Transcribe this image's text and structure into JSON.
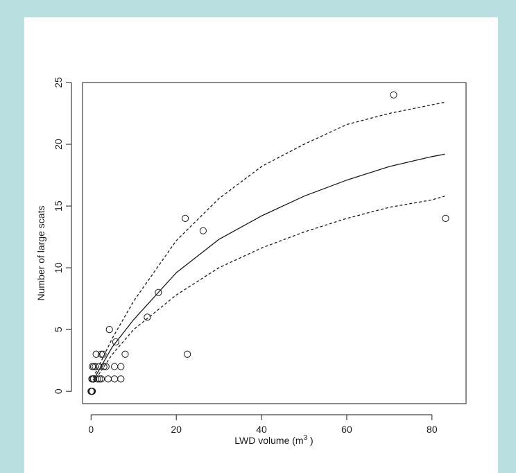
{
  "chart_data": {
    "type": "scatter",
    "title": "",
    "xlabel": "LWD volume (m",
    "xlabel_sup": "3",
    "xlabel_close": " )",
    "ylabel": "Number of large scats",
    "xlim": [
      -2,
      88
    ],
    "ylim": [
      -1,
      25
    ],
    "x_ticks": [
      0,
      20,
      40,
      60,
      80
    ],
    "y_ticks": [
      0,
      5,
      10,
      15,
      20,
      25
    ],
    "grid": false,
    "legend": "none",
    "points": [
      [
        0,
        0
      ],
      [
        0.1,
        0
      ],
      [
        0.2,
        0
      ],
      [
        0.3,
        0
      ],
      [
        0.2,
        1
      ],
      [
        0.4,
        1
      ],
      [
        0.6,
        1
      ],
      [
        1.5,
        1
      ],
      [
        2.0,
        1
      ],
      [
        2.4,
        1
      ],
      [
        4.0,
        1
      ],
      [
        5.5,
        1
      ],
      [
        7.0,
        1
      ],
      [
        0.3,
        2
      ],
      [
        0.6,
        2
      ],
      [
        1.0,
        2
      ],
      [
        1.8,
        2
      ],
      [
        3.0,
        2
      ],
      [
        3.5,
        2
      ],
      [
        5.5,
        2
      ],
      [
        7.0,
        2
      ],
      [
        1.2,
        3
      ],
      [
        2.4,
        3
      ],
      [
        2.8,
        3
      ],
      [
        8.0,
        3
      ],
      [
        5.8,
        4
      ],
      [
        4.3,
        5
      ],
      [
        13.2,
        6
      ],
      [
        15.8,
        8
      ],
      [
        22.6,
        3
      ],
      [
        22.1,
        14
      ],
      [
        26.3,
        13
      ],
      [
        71.0,
        24
      ],
      [
        83.2,
        14
      ]
    ],
    "fit": {
      "style": "solid",
      "x": [
        0.5,
        5,
        10,
        20,
        30,
        40,
        50,
        60,
        70,
        80,
        83
      ],
      "y": [
        0.9,
        3.6,
        5.8,
        9.6,
        12.3,
        14.2,
        15.8,
        17.1,
        18.2,
        19.0,
        19.2
      ]
    },
    "upper_band": {
      "style": "dashed",
      "x": [
        0.5,
        5,
        10,
        20,
        30,
        40,
        50,
        60,
        70,
        80,
        83
      ],
      "y": [
        1.1,
        4.3,
        7.3,
        12.2,
        15.6,
        18.2,
        20.0,
        21.6,
        22.5,
        23.2,
        23.4
      ]
    },
    "lower_band": {
      "style": "dashed",
      "x": [
        0.5,
        5,
        10,
        20,
        30,
        40,
        50,
        60,
        70,
        80,
        83
      ],
      "y": [
        0.7,
        3.0,
        5.0,
        7.8,
        10.0,
        11.6,
        12.9,
        14.0,
        14.9,
        15.5,
        15.8
      ]
    }
  }
}
